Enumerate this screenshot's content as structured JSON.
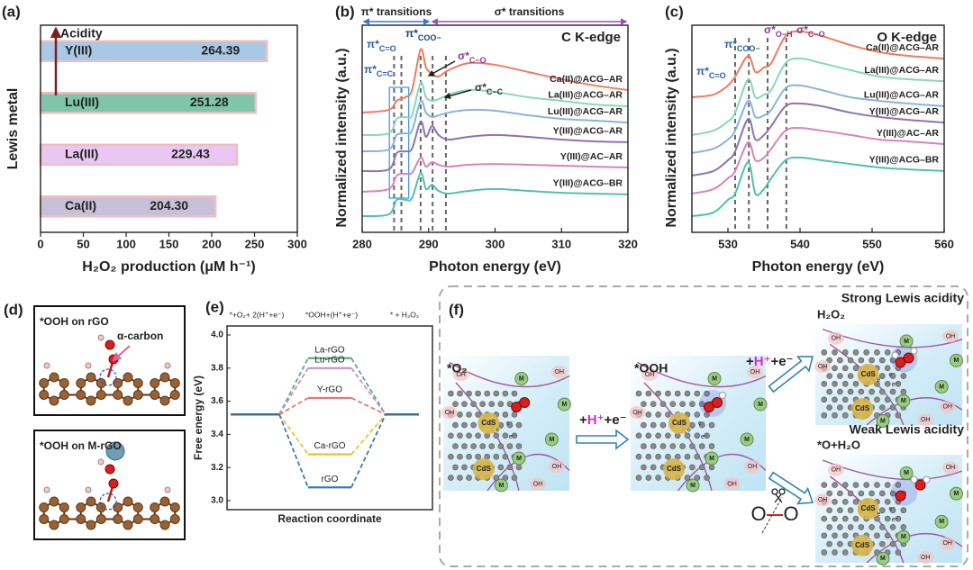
{
  "chart_data": [
    {
      "type": "bar",
      "label": "(a)",
      "ylabel": "Lewis metal",
      "xlabel": "H₂O₂ production (μM h⁻¹)",
      "annotation": "Acidity",
      "categories": [
        "Y(III)",
        "Lu(III)",
        "La(III)",
        "Ca(II)"
      ],
      "values": [
        264.39,
        251.28,
        229.43,
        204.3
      ],
      "value_labels": [
        "264.39",
        "251.28",
        "229.43",
        "204.30"
      ],
      "colors": [
        "#a8c9e6",
        "#7ec5ac",
        "#e8c8f2",
        "#c8c0d8"
      ],
      "edgecolor": "#f4bcbc",
      "xlim": [
        0,
        300
      ],
      "xticks": [
        0,
        50,
        100,
        150,
        200,
        250,
        300
      ]
    },
    {
      "type": "line",
      "label": "(b)",
      "xlabel": "Photon energy (eV)",
      "ylabel": "Normalized intensity (a.u.)",
      "edge": "C K-edge",
      "spans": [
        {
          "text": "π* transitions",
          "range": [
            280,
            290.3
          ],
          "color": "#3a7dc4"
        },
        {
          "text": "σ* transitions",
          "range": [
            290.3,
            320
          ],
          "color": "#9b4fb6"
        }
      ],
      "annotations": [
        {
          "text": "π*",
          "sub": "C=O"
        },
        {
          "text": "π*",
          "sub": "C=C"
        },
        {
          "text": "π*",
          "sub": "COO−"
        },
        {
          "text": "σ*",
          "sub": "C−O"
        },
        {
          "text": "σ*",
          "sub": "C−C"
        }
      ],
      "x": [
        280,
        284,
        285.2,
        286.5,
        287.5,
        288.8,
        289.6,
        290.5,
        291.5,
        293,
        296,
        300,
        305,
        310,
        315,
        320
      ],
      "series": [
        {
          "name": "Ca(II)@ACG–AR",
          "color": "#ef7d5f",
          "values": [
            5.78,
            5.91,
            6.35,
            6.52,
            6.87,
            8.83,
            7.96,
            7.65,
            7.52,
            7.83,
            8.17,
            8.09,
            7.74,
            7.39,
            7.09,
            6.87
          ]
        },
        {
          "name": "La(III)@ACG–AR",
          "color": "#8ad8b8",
          "values": [
            4.7,
            4.78,
            5.48,
            5.57,
            5.65,
            7.22,
            6.52,
            6.35,
            6.43,
            6.65,
            6.87,
            6.78,
            6.52,
            6.35,
            6.17,
            6.09
          ]
        },
        {
          "name": "Lu(III)@ACG–AR",
          "color": "#86b5df",
          "values": [
            3.91,
            4.0,
            4.7,
            4.78,
            4.91,
            6.35,
            5.78,
            5.57,
            5.65,
            5.78,
            5.91,
            5.87,
            5.65,
            5.48,
            5.39,
            5.3
          ]
        },
        {
          "name": "Y(III)@ACG–AR",
          "color": "#8c73b5",
          "values": [
            2.96,
            3.04,
            3.83,
            3.91,
            4.04,
            5.35,
            4.61,
            5.13,
            4.7,
            4.48,
            4.61,
            4.7,
            4.61,
            4.48,
            4.39,
            4.35
          ]
        },
        {
          "name": "Y(III)@AC–AR",
          "color": "#d983bd",
          "values": [
            1.96,
            2.09,
            2.74,
            2.83,
            2.87,
            3.61,
            3.17,
            3.39,
            3.26,
            3.17,
            3.26,
            3.3,
            3.26,
            3.22,
            3.17,
            3.13
          ]
        },
        {
          "name": "Y(III)@ACG–BR",
          "color": "#4fc1b1",
          "values": [
            0.78,
            0.87,
            1.57,
            1.57,
            1.65,
            2.87,
            2.09,
            2.3,
            2.0,
            1.87,
            2.0,
            2.09,
            2.0,
            1.91,
            1.87,
            1.83
          ]
        }
      ],
      "xlim": [
        280,
        320
      ],
      "xticks": [
        280,
        290,
        300,
        310,
        320
      ],
      "ylim": [
        0,
        10
      ],
      "vlines": [
        284.8,
        285.9,
        288.8,
        290.6,
        292.6
      ],
      "highlight": [
        284.1,
        287
      ]
    },
    {
      "type": "line",
      "label": "(c)",
      "xlabel": "Photon energy (eV)",
      "ylabel": "Normalized intensity (a.u.)",
      "edge": "O K-edge",
      "annotations": [
        {
          "text": "π*",
          "sub": "C=O"
        },
        {
          "text": "π*",
          "sub": "COO−"
        },
        {
          "text": "σ*",
          "sub": "O−H"
        },
        {
          "text": "σ*",
          "sub": "C−O"
        }
      ],
      "x": [
        525,
        528,
        530,
        531,
        532.8,
        533.8,
        535,
        536,
        538,
        540,
        543,
        547,
        551,
        555,
        560
      ],
      "series": [
        {
          "name": "Ca(II)@ACG–AR",
          "color": "#ef7d5f",
          "values": [
            6.52,
            6.65,
            7.09,
            7.52,
            8.52,
            7.74,
            7.96,
            8.17,
            9.48,
            9.7,
            9.48,
            9.04,
            8.7,
            8.52,
            8.39
          ]
        },
        {
          "name": "La(III)@ACG–AR",
          "color": "#8ad8b8",
          "values": [
            4.7,
            4.91,
            5.35,
            5.78,
            7.39,
            6.52,
            6.65,
            6.87,
            8.17,
            8.39,
            8.17,
            7.83,
            7.52,
            7.39,
            7.3
          ]
        },
        {
          "name": "Lu(III)@ACG–AR",
          "color": "#86b5df",
          "values": [
            3.83,
            4.04,
            4.48,
            4.91,
            6.35,
            5.57,
            5.65,
            5.91,
            6.96,
            7.09,
            6.87,
            6.52,
            6.35,
            6.22,
            6.09
          ]
        },
        {
          "name": "Y(III)@ACG–AR",
          "color": "#8c73b5",
          "values": [
            2.74,
            2.96,
            3.48,
            3.91,
            5.48,
            4.48,
            4.7,
            5.13,
            6.09,
            6.22,
            6.09,
            5.78,
            5.57,
            5.43,
            5.3
          ]
        },
        {
          "name": "Y(III)@AC–AR",
          "color": "#d983bd",
          "values": [
            1.87,
            2.09,
            2.61,
            2.96,
            4.35,
            3.48,
            3.61,
            4.04,
            4.91,
            5.04,
            4.91,
            4.7,
            4.48,
            4.39,
            4.26
          ]
        },
        {
          "name": "Y(III)@ACG–BR",
          "color": "#4fc1b1",
          "values": [
            0.78,
            0.96,
            1.57,
            1.87,
            3.39,
            1.87,
            2.09,
            2.61,
            3.48,
            3.61,
            3.48,
            3.3,
            3.13,
            3.04,
            2.96
          ]
        }
      ],
      "xlim": [
        525,
        560
      ],
      "xticks": [
        530,
        540,
        550,
        560
      ],
      "ylim": [
        0,
        10
      ],
      "vlines": [
        531,
        532.9,
        535.5,
        538.1
      ]
    },
    {
      "type": "energy",
      "label": "(e)",
      "ylabel": "Free energy (eV)",
      "xlabel": "Reaction coordinate",
      "categories": [
        "*+O₂+ 2(H⁺+e⁻)",
        "*OOH+(H⁺+e⁻)",
        "* + H₂O₂"
      ],
      "level_color": "#3b6f96",
      "series": [
        {
          "name": "La-rGO",
          "color": "#5aab85",
          "values": [
            3.52,
            3.86,
            3.52
          ]
        },
        {
          "name": "Lu-rGO",
          "color": "#c98fcf",
          "values": [
            3.52,
            3.8,
            3.52
          ]
        },
        {
          "name": "Y-rGO",
          "color": "#e8766e",
          "values": [
            3.52,
            3.62,
            3.52
          ]
        },
        {
          "name": "Ca-rGO",
          "color": "#f2c12e",
          "values": [
            3.52,
            3.28,
            3.52
          ]
        },
        {
          "name": "rGO",
          "color": "#3d78b5",
          "values": [
            3.52,
            3.08,
            3.52
          ]
        }
      ],
      "ylim": [
        3,
        4
      ],
      "yticks": [
        {
          "value": 3,
          "label": "3.0"
        },
        3.2,
        3.4,
        3.6,
        3.8,
        {
          "value": 4,
          "label": "4.0"
        }
      ]
    }
  ],
  "panels": {
    "d": {
      "label": "(d)",
      "top": "*OOH on rGO",
      "alpha": "α-carbon",
      "bottom": "*OOH on M-rGO"
    },
    "f": {
      "label": "(f)",
      "start": "*O₂",
      "middle": "*OOH",
      "step": {
        "plus": "+",
        "proton": "H⁺",
        "electron": "+e⁻"
      },
      "strong": "Strong Lewis acidity",
      "strong_product": "H₂O₂",
      "weak": "Weak Lewis acidity",
      "weak_product": "*O+H₂O",
      "cds": "CdS",
      "m": "M",
      "oh": "OH",
      "e": "e⁻",
      "oxygen": "O"
    }
  }
}
